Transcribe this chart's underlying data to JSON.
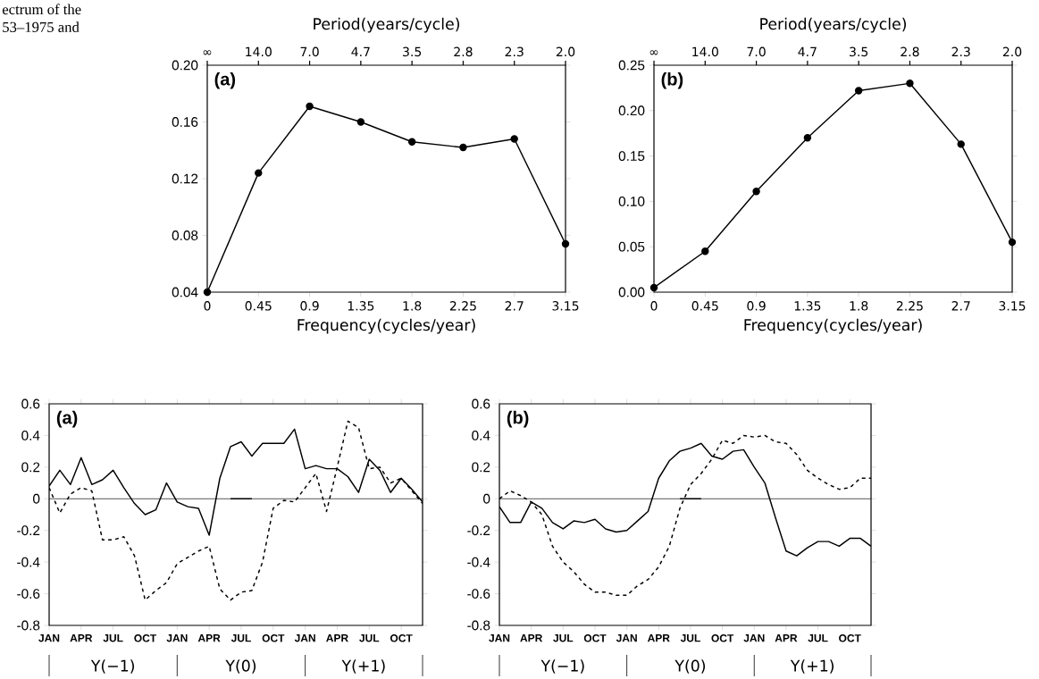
{
  "chart_data": [
    {
      "type": "line",
      "title": "(a)",
      "xlabel": "Frequency(cycles/year)",
      "x2label": "Period(years/cycle)",
      "marker": "circle",
      "annotations": [
        "ectrum of the",
        "53–1975 and",
        "∞",
        {
          "text": "14.0",
          "x": 0.45
        },
        {
          "text": "7.0",
          "x": 0.9
        },
        {
          "text": "4.7",
          "x": 1.35
        },
        {
          "text": "3.5",
          "x": 1.8
        },
        {
          "text": "2.8",
          "x": 2.25
        },
        {
          "text": "2.3",
          "x": 2.7
        },
        {
          "text": "2.0",
          "x": 3.15
        }
      ],
      "x": [
        0,
        0.45,
        0.9,
        1.35,
        1.8,
        2.25,
        2.7,
        3.15
      ],
      "series": [
        {
          "color": "#000000",
          "values": [
            0.04,
            0.124,
            0.171,
            0.16,
            0.146,
            0.142,
            0.148,
            0.074
          ]
        }
      ],
      "xlim": [
        0,
        3.15
      ],
      "xticks": [
        0,
        0.45,
        0.9,
        1.35,
        1.8,
        2.25,
        2.7,
        3.15
      ],
      "ylim": [
        0.04,
        0.2
      ],
      "yticks": [
        0.04,
        0.08,
        0.12,
        0.16,
        {
          "value": 0.2,
          "label": "0.20"
        }
      ]
    },
    {
      "type": "line",
      "title": "(b)",
      "xlabel": "Frequency(cycles/year)",
      "x2label": "Period(years/cycle)",
      "marker": "circle",
      "x": [
        0,
        0.45,
        0.9,
        1.35,
        1.8,
        2.25,
        2.7,
        3.15
      ],
      "series": [
        {
          "color": "#000000",
          "values": [
            0.005,
            0.045,
            0.111,
            0.17,
            0.222,
            0.23,
            0.163,
            0.055
          ]
        }
      ],
      "xlim": [
        0,
        3.15
      ],
      "xticks": [
        0,
        0.45,
        0.9,
        1.35,
        1.8,
        2.25,
        2.7,
        3.15
      ],
      "annotations": [
        "∞",
        {
          "text": "14.0",
          "x": 0.45
        },
        {
          "text": "7.0",
          "x": 0.9
        },
        {
          "text": "4.7",
          "x": 1.35
        },
        {
          "text": "3.5",
          "x": 1.8
        },
        {
          "text": "2.8",
          "x": 2.25
        },
        {
          "text": "2.3",
          "x": 2.7
        },
        {
          "text": "2.0",
          "x": 3.15
        }
      ],
      "ylim": [
        0,
        0.25
      ],
      "yticks": [
        {
          "value": 0,
          "label": "0.00"
        },
        0.05,
        {
          "value": 0.1,
          "label": "0.10"
        },
        0.15,
        {
          "value": 0.2,
          "label": "0.20"
        },
        0.25
      ]
    },
    {
      "type": "line",
      "title": "(a)",
      "annotations": [
        "Y(−1)",
        "Y(0)",
        "Y(+1)"
      ],
      "categories": [
        "JAN",
        null,
        null,
        "APR",
        null,
        null,
        "JUL",
        null,
        null,
        "OCT",
        null,
        null,
        "JAN",
        null,
        null,
        "APR",
        null,
        null,
        "JUL",
        null,
        null,
        "OCT",
        null,
        null,
        "JAN",
        null,
        null,
        "APR",
        null,
        null,
        "JUL",
        null,
        null,
        "OCT",
        null,
        null
      ],
      "series": [
        {
          "color": "#000000",
          "line_style": "solid",
          "values": [
            0.08,
            0.18,
            0.09,
            0.26,
            0.09,
            0.12,
            0.18,
            0.07,
            -0.03,
            -0.1,
            -0.07,
            0.1,
            -0.02,
            -0.05,
            -0.06,
            -0.23,
            0.13,
            0.33,
            0.36,
            0.27,
            0.35,
            0.35,
            0.35,
            0.44,
            0.19,
            0.21,
            0.19,
            0.19,
            0.14,
            0.04,
            0.25,
            0.18,
            0.04,
            0.13,
            0.06,
            -0.02
          ]
        },
        {
          "color": "#000000",
          "line_style": "dashed",
          "values": [
            0.07,
            -0.09,
            0.03,
            0.07,
            0.05,
            -0.26,
            -0.26,
            -0.24,
            -0.36,
            -0.64,
            -0.58,
            -0.53,
            -0.41,
            -0.37,
            -0.33,
            -0.3,
            -0.57,
            -0.64,
            -0.59,
            -0.58,
            -0.4,
            -0.06,
            -0.01,
            -0.02,
            0.07,
            0.16,
            -0.08,
            0.2,
            0.49,
            0.45,
            0.19,
            0.2,
            0.1,
            0.13,
            0.05,
            -0.03
          ]
        },
        {
          "color": "#000000",
          "line_style": "solid",
          "values": [
            null,
            null,
            null,
            null,
            null,
            null,
            null,
            null,
            null,
            null,
            null,
            null,
            null,
            null,
            null,
            null,
            null,
            0,
            0,
            0,
            null,
            null,
            null,
            null,
            null,
            null,
            null,
            null,
            null,
            null,
            null,
            null,
            null,
            null,
            null,
            null
          ]
        }
      ],
      "ylim": [
        -0.8,
        0.6
      ],
      "yticks": [
        -0.8,
        -0.6,
        -0.4,
        -0.2,
        0,
        0.2,
        0.4,
        0.6
      ],
      "ref_lines": [
        {
          "axis": "y",
          "value": 0,
          "color": "#000000"
        }
      ]
    },
    {
      "type": "line",
      "title": "(b)",
      "annotations": [
        "Y(−1)",
        "Y(0)",
        "Y(+1)"
      ],
      "categories": [
        "JAN",
        null,
        null,
        "APR",
        null,
        null,
        "JUL",
        null,
        null,
        "OCT",
        null,
        null,
        "JAN",
        null,
        null,
        "APR",
        null,
        null,
        "JUL",
        null,
        null,
        "OCT",
        null,
        null,
        "JAN",
        null,
        null,
        "APR",
        null,
        null,
        "JUL",
        null,
        null,
        "OCT",
        null,
        null
      ],
      "series": [
        {
          "color": "#000000",
          "line_style": "solid",
          "values": [
            -0.05,
            -0.15,
            -0.15,
            -0.02,
            -0.06,
            -0.15,
            -0.19,
            -0.14,
            -0.15,
            -0.13,
            -0.19,
            -0.21,
            -0.2,
            -0.14,
            -0.08,
            0.13,
            0.24,
            0.3,
            0.32,
            0.35,
            0.27,
            0.25,
            0.3,
            0.31,
            0.2,
            0.1,
            -0.12,
            -0.33,
            -0.36,
            -0.31,
            -0.27,
            -0.27,
            -0.3,
            -0.25,
            -0.25,
            -0.3
          ]
        },
        {
          "color": "#000000",
          "line_style": "dashed",
          "values": [
            0.0,
            0.05,
            0.02,
            -0.02,
            -0.1,
            -0.3,
            -0.4,
            -0.46,
            -0.54,
            -0.59,
            -0.59,
            -0.61,
            -0.61,
            -0.55,
            -0.51,
            -0.43,
            -0.3,
            -0.06,
            0.09,
            0.16,
            0.25,
            0.37,
            0.35,
            0.4,
            0.39,
            0.4,
            0.36,
            0.35,
            0.28,
            0.18,
            0.13,
            0.09,
            0.06,
            0.07,
            0.13,
            0.13
          ]
        },
        {
          "color": "#000000",
          "line_style": "solid",
          "values": [
            null,
            null,
            null,
            null,
            null,
            null,
            null,
            null,
            null,
            null,
            null,
            null,
            null,
            null,
            null,
            null,
            null,
            0,
            0,
            0,
            null,
            null,
            null,
            null,
            null,
            null,
            null,
            null,
            null,
            null,
            null,
            null,
            null,
            null,
            null,
            null
          ]
        }
      ],
      "ylim": [
        -0.8,
        0.6
      ],
      "yticks": [
        -0.8,
        -0.6,
        -0.4,
        -0.2,
        0,
        0.2,
        0.4,
        0.6
      ],
      "ref_lines": [
        {
          "axis": "y",
          "value": 0,
          "color": "#000000"
        }
      ]
    }
  ]
}
